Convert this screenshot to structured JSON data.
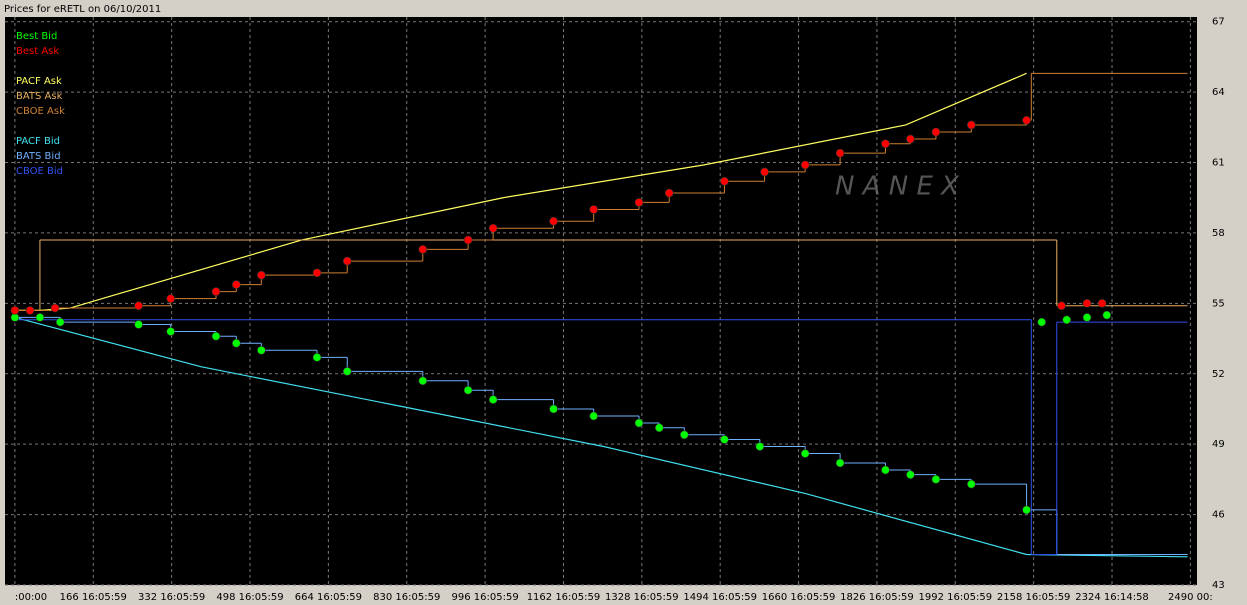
{
  "chart_data": {
    "type": "line",
    "title": "Prices for  eRETL  on  06/10/2011",
    "watermark": "N A N E X",
    "xlim": [
      -21,
      2504
    ],
    "ylim": [
      43,
      67.2
    ],
    "grid": true,
    "legend_position": "upper left",
    "xticks": [
      {
        "value": 0,
        "label": ":00:00"
      },
      {
        "value": 166,
        "label": "166 16:05:59"
      },
      {
        "value": 332,
        "label": "332 16:05:59"
      },
      {
        "value": 498,
        "label": "498 16:05:59"
      },
      {
        "value": 664,
        "label": "664 16:05:59"
      },
      {
        "value": 830,
        "label": "830 16:05:59"
      },
      {
        "value": 996,
        "label": "996 16:05:59"
      },
      {
        "value": 1162,
        "label": "1162 16:05:59"
      },
      {
        "value": 1328,
        "label": "1328 16:05:59"
      },
      {
        "value": 1494,
        "label": "1494 16:05:59"
      },
      {
        "value": 1660,
        "label": "1660 16:05:59"
      },
      {
        "value": 1826,
        "label": "1826 16:05:59"
      },
      {
        "value": 1992,
        "label": "1992 16:05:59"
      },
      {
        "value": 2158,
        "label": "2158 16:05:59"
      },
      {
        "value": 2324,
        "label": "2324 16:14:58"
      },
      {
        "value": 2490,
        "label": "2490 00:"
      }
    ],
    "yticks": [
      43,
      46,
      49,
      52,
      55,
      58,
      61,
      64,
      67
    ],
    "series": [
      {
        "name": "Best Bid",
        "color": "#00ff00",
        "marker": true,
        "x": [
          0,
          53,
          96,
          262,
          330,
          426,
          469,
          522,
          640,
          704,
          864,
          960,
          1013,
          1141,
          1226,
          1322,
          1365,
          1418,
          1503,
          1578,
          1674,
          1748,
          1844,
          1897,
          1951,
          2026,
          2143,
          2175,
          2228,
          2271,
          2313
        ],
        "values": [
          54.4,
          54.4,
          54.2,
          54.1,
          53.8,
          53.6,
          53.3,
          53.0,
          52.7,
          52.1,
          51.7,
          51.3,
          50.9,
          50.5,
          50.2,
          49.9,
          49.7,
          49.4,
          49.2,
          48.9,
          48.6,
          48.2,
          47.9,
          47.7,
          47.5,
          47.3,
          46.2,
          54.2,
          54.3,
          54.4,
          54.5
        ]
      },
      {
        "name": "Best Ask",
        "color": "#ff0000",
        "marker": true,
        "x": [
          0,
          32,
          85,
          262,
          330,
          426,
          469,
          522,
          640,
          704,
          864,
          960,
          1013,
          1141,
          1226,
          1322,
          1386,
          1503,
          1588,
          1674,
          1748,
          1844,
          1897,
          1951,
          2026,
          2143,
          2217,
          2271,
          2303
        ],
        "values": [
          54.7,
          54.7,
          54.8,
          54.9,
          55.2,
          55.5,
          55.8,
          56.2,
          56.3,
          56.8,
          57.3,
          57.7,
          58.2,
          58.5,
          59.0,
          59.3,
          59.7,
          60.2,
          60.6,
          60.9,
          61.4,
          61.8,
          62.0,
          62.3,
          62.6,
          62.8,
          54.9,
          55.0,
          55.0
        ]
      },
      {
        "name": "PACF Ask",
        "color": "#ffff60",
        "step": false,
        "x": [
          0,
          53,
          117,
          608,
          1034,
          1460,
          1887,
          2143
        ],
        "values": [
          54.7,
          54.7,
          54.8,
          57.7,
          59.5,
          60.9,
          62.6,
          64.8
        ]
      },
      {
        "name": "BATS Ask",
        "color": "#e8b060",
        "step": true,
        "x": [
          0,
          53,
          2207,
          2484
        ],
        "values": [
          54.7,
          57.7,
          54.9,
          54.9
        ]
      },
      {
        "name": "CBOE Ask",
        "color": "#d08030",
        "step": true,
        "x": [
          0,
          85,
          262,
          330,
          426,
          469,
          522,
          640,
          704,
          864,
          960,
          1013,
          1141,
          1226,
          1322,
          1386,
          1503,
          1588,
          1674,
          1748,
          1844,
          1897,
          1951,
          2026,
          2143,
          2153,
          2484
        ],
        "values": [
          54.7,
          54.8,
          54.9,
          55.2,
          55.5,
          55.8,
          56.2,
          56.3,
          56.8,
          57.3,
          57.7,
          58.2,
          58.5,
          59.0,
          59.3,
          59.7,
          60.2,
          60.6,
          60.9,
          61.4,
          61.8,
          62.0,
          62.3,
          62.6,
          62.8,
          64.8,
          64.8
        ]
      },
      {
        "name": "PACF Bid",
        "color": "#40e0f0",
        "step": false,
        "x": [
          0,
          394,
          821,
          1247,
          1674,
          2143,
          2484
        ],
        "values": [
          54.4,
          52.3,
          50.6,
          48.9,
          46.9,
          44.3,
          44.2
        ]
      },
      {
        "name": "BATS Bid",
        "color": "#70b0ff",
        "step": true,
        "x": [
          0,
          96,
          262,
          330,
          426,
          469,
          522,
          640,
          704,
          864,
          960,
          1013,
          1141,
          1226,
          1322,
          1365,
          1418,
          1503,
          1578,
          1674,
          1748,
          1844,
          1897,
          1951,
          2026,
          2143,
          2207,
          2484
        ],
        "values": [
          54.4,
          54.2,
          54.1,
          53.8,
          53.6,
          53.3,
          53.0,
          52.7,
          52.1,
          51.7,
          51.3,
          50.9,
          50.5,
          50.2,
          49.9,
          49.7,
          49.4,
          49.2,
          48.9,
          48.6,
          48.2,
          47.9,
          47.7,
          47.5,
          47.3,
          46.2,
          44.3,
          44.3
        ]
      },
      {
        "name": "CBOE Bid",
        "color": "#3050f0",
        "step": true,
        "x": [
          0,
          2153,
          2207,
          2484
        ],
        "values": [
          54.3,
          44.3,
          54.2,
          54.2
        ]
      }
    ]
  }
}
